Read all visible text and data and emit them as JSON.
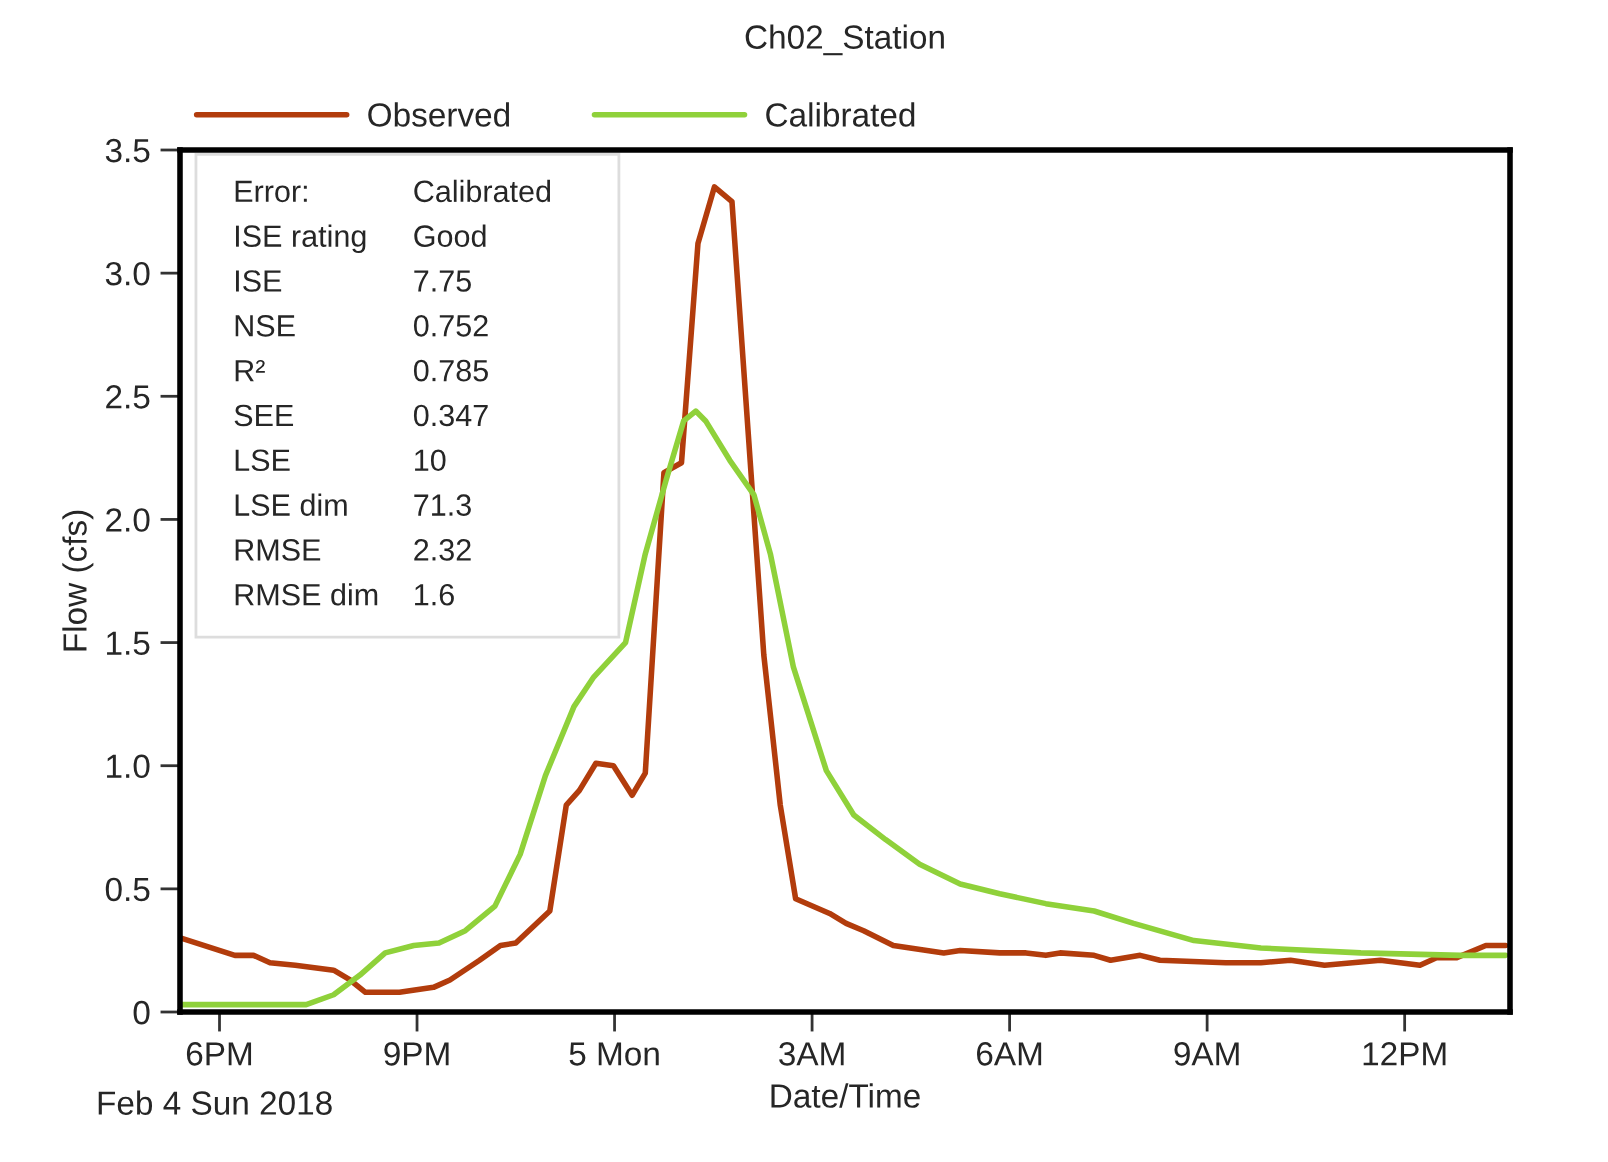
{
  "chart_data": {
    "type": "line",
    "title": "Ch02_Station",
    "xlabel": "Date/Time",
    "ylabel": "Flow (cfs)",
    "xlim": [
      "2018-02-04T17:24",
      "2018-02-05T13:36"
    ],
    "ylim": [
      0,
      3.5
    ],
    "xticks": [
      {
        "value": "2018-02-04T18:00",
        "label": "6PM"
      },
      {
        "value": "2018-02-04T21:00",
        "label": "9PM"
      },
      {
        "value": "2018-02-05T00:00",
        "label": "5 Mon"
      },
      {
        "value": "2018-02-05T03:00",
        "label": "3AM"
      },
      {
        "value": "2018-02-05T06:00",
        "label": "6AM"
      },
      {
        "value": "2018-02-05T09:00",
        "label": "9AM"
      },
      {
        "value": "2018-02-05T12:00",
        "label": "12PM"
      }
    ],
    "yticks": [
      0,
      0.5,
      {
        "value": 1,
        "label": "1.0"
      },
      1.5,
      {
        "value": 2,
        "label": "2.0"
      },
      2.5,
      {
        "value": 3,
        "label": "3.0"
      },
      3.5
    ],
    "grid": false,
    "legend": "top",
    "line_style": "solid",
    "marker": "none",
    "annotations": [
      "Feb 4 Sun 2018",
      "Error:\tCalibrated",
      "ISE rating\tGood",
      "ISE\t7.75",
      "NSE\t0.752",
      "R²\t0.785",
      "SEE\t0.347",
      "LSE\t10",
      "LSE dim\t71.3",
      "RMSE\t2.32",
      "RMSE dim\t1.6"
    ],
    "series": [
      {
        "name": "Observed",
        "color": "#b23c0c",
        "x": [
          "2018-02-04T17:25",
          "2018-02-04T18:14",
          "2018-02-04T18:31",
          "2018-02-04T18:46",
          "2018-02-04T19:09",
          "2018-02-04T19:44",
          "2018-02-04T19:59",
          "2018-02-04T20:13",
          "2018-02-04T20:44",
          "2018-02-04T21:15",
          "2018-02-04T21:30",
          "2018-02-04T21:57",
          "2018-02-04T22:16",
          "2018-02-04T22:30",
          "2018-02-04T23:01",
          "2018-02-04T23:16",
          "2018-02-04T23:28",
          "2018-02-04T23:43",
          "2018-02-04T23:59",
          "2018-02-05T00:16",
          "2018-02-05T00:28",
          "2018-02-05T00:45",
          "2018-02-05T01:01",
          "2018-02-05T01:16",
          "2018-02-05T01:31",
          "2018-02-05T01:47",
          "2018-02-05T02:16",
          "2018-02-05T02:31",
          "2018-02-05T02:45",
          "2018-02-05T03:16",
          "2018-02-05T03:31",
          "2018-02-05T03:47",
          "2018-02-05T04:14",
          "2018-02-05T05:00",
          "2018-02-05T05:15",
          "2018-02-05T05:51",
          "2018-02-05T06:15",
          "2018-02-05T06:33",
          "2018-02-05T06:46",
          "2018-02-05T07:17",
          "2018-02-05T07:32",
          "2018-02-05T07:59",
          "2018-02-05T08:17",
          "2018-02-05T09:17",
          "2018-02-05T09:49",
          "2018-02-05T10:16",
          "2018-02-05T10:47",
          "2018-02-05T11:38",
          "2018-02-05T12:14",
          "2018-02-05T12:29",
          "2018-02-05T12:47",
          "2018-02-05T13:14",
          "2018-02-05T13:32"
        ],
        "values": [
          0.3,
          0.23,
          0.23,
          0.2,
          0.19,
          0.17,
          0.13,
          0.08,
          0.08,
          0.1,
          0.13,
          0.21,
          0.27,
          0.28,
          0.41,
          0.84,
          0.9,
          1.01,
          1.0,
          0.88,
          0.97,
          2.19,
          2.23,
          3.12,
          3.35,
          3.29,
          1.45,
          0.84,
          0.46,
          0.4,
          0.36,
          0.33,
          0.27,
          0.24,
          0.25,
          0.24,
          0.24,
          0.23,
          0.24,
          0.23,
          0.21,
          0.23,
          0.21,
          0.2,
          0.2,
          0.21,
          0.19,
          0.21,
          0.19,
          0.22,
          0.22,
          0.27,
          0.27
        ]
      },
      {
        "name": "Calibrated",
        "color": "#8fd13a",
        "x": [
          "2018-02-04T17:25",
          "2018-02-04T19:19",
          "2018-02-04T19:44",
          "2018-02-04T20:08",
          "2018-02-04T20:31",
          "2018-02-04T20:57",
          "2018-02-04T21:20",
          "2018-02-04T21:44",
          "2018-02-04T22:11",
          "2018-02-04T22:34",
          "2018-02-04T22:57",
          "2018-02-04T23:23",
          "2018-02-04T23:41",
          "2018-02-05T00:10",
          "2018-02-05T00:28",
          "2018-02-05T00:47",
          "2018-02-05T01:03",
          "2018-02-05T01:14",
          "2018-02-05T01:23",
          "2018-02-05T01:45",
          "2018-02-05T02:07",
          "2018-02-05T02:22",
          "2018-02-05T02:43",
          "2018-02-05T03:13",
          "2018-02-05T03:38",
          "2018-02-05T04:07",
          "2018-02-05T04:38",
          "2018-02-05T05:15",
          "2018-02-05T05:51",
          "2018-02-05T06:33",
          "2018-02-05T07:17",
          "2018-02-05T07:53",
          "2018-02-05T08:48",
          "2018-02-05T09:49",
          "2018-02-05T11:20",
          "2018-02-05T12:51",
          "2018-02-05T13:32"
        ],
        "values": [
          0.03,
          0.03,
          0.07,
          0.15,
          0.24,
          0.27,
          0.28,
          0.33,
          0.43,
          0.64,
          0.96,
          1.24,
          1.36,
          1.5,
          1.86,
          2.16,
          2.4,
          2.44,
          2.4,
          2.24,
          2.1,
          1.86,
          1.4,
          0.98,
          0.8,
          0.7,
          0.6,
          0.52,
          0.48,
          0.44,
          0.41,
          0.36,
          0.29,
          0.26,
          0.24,
          0.23,
          0.23
        ]
      }
    ]
  }
}
